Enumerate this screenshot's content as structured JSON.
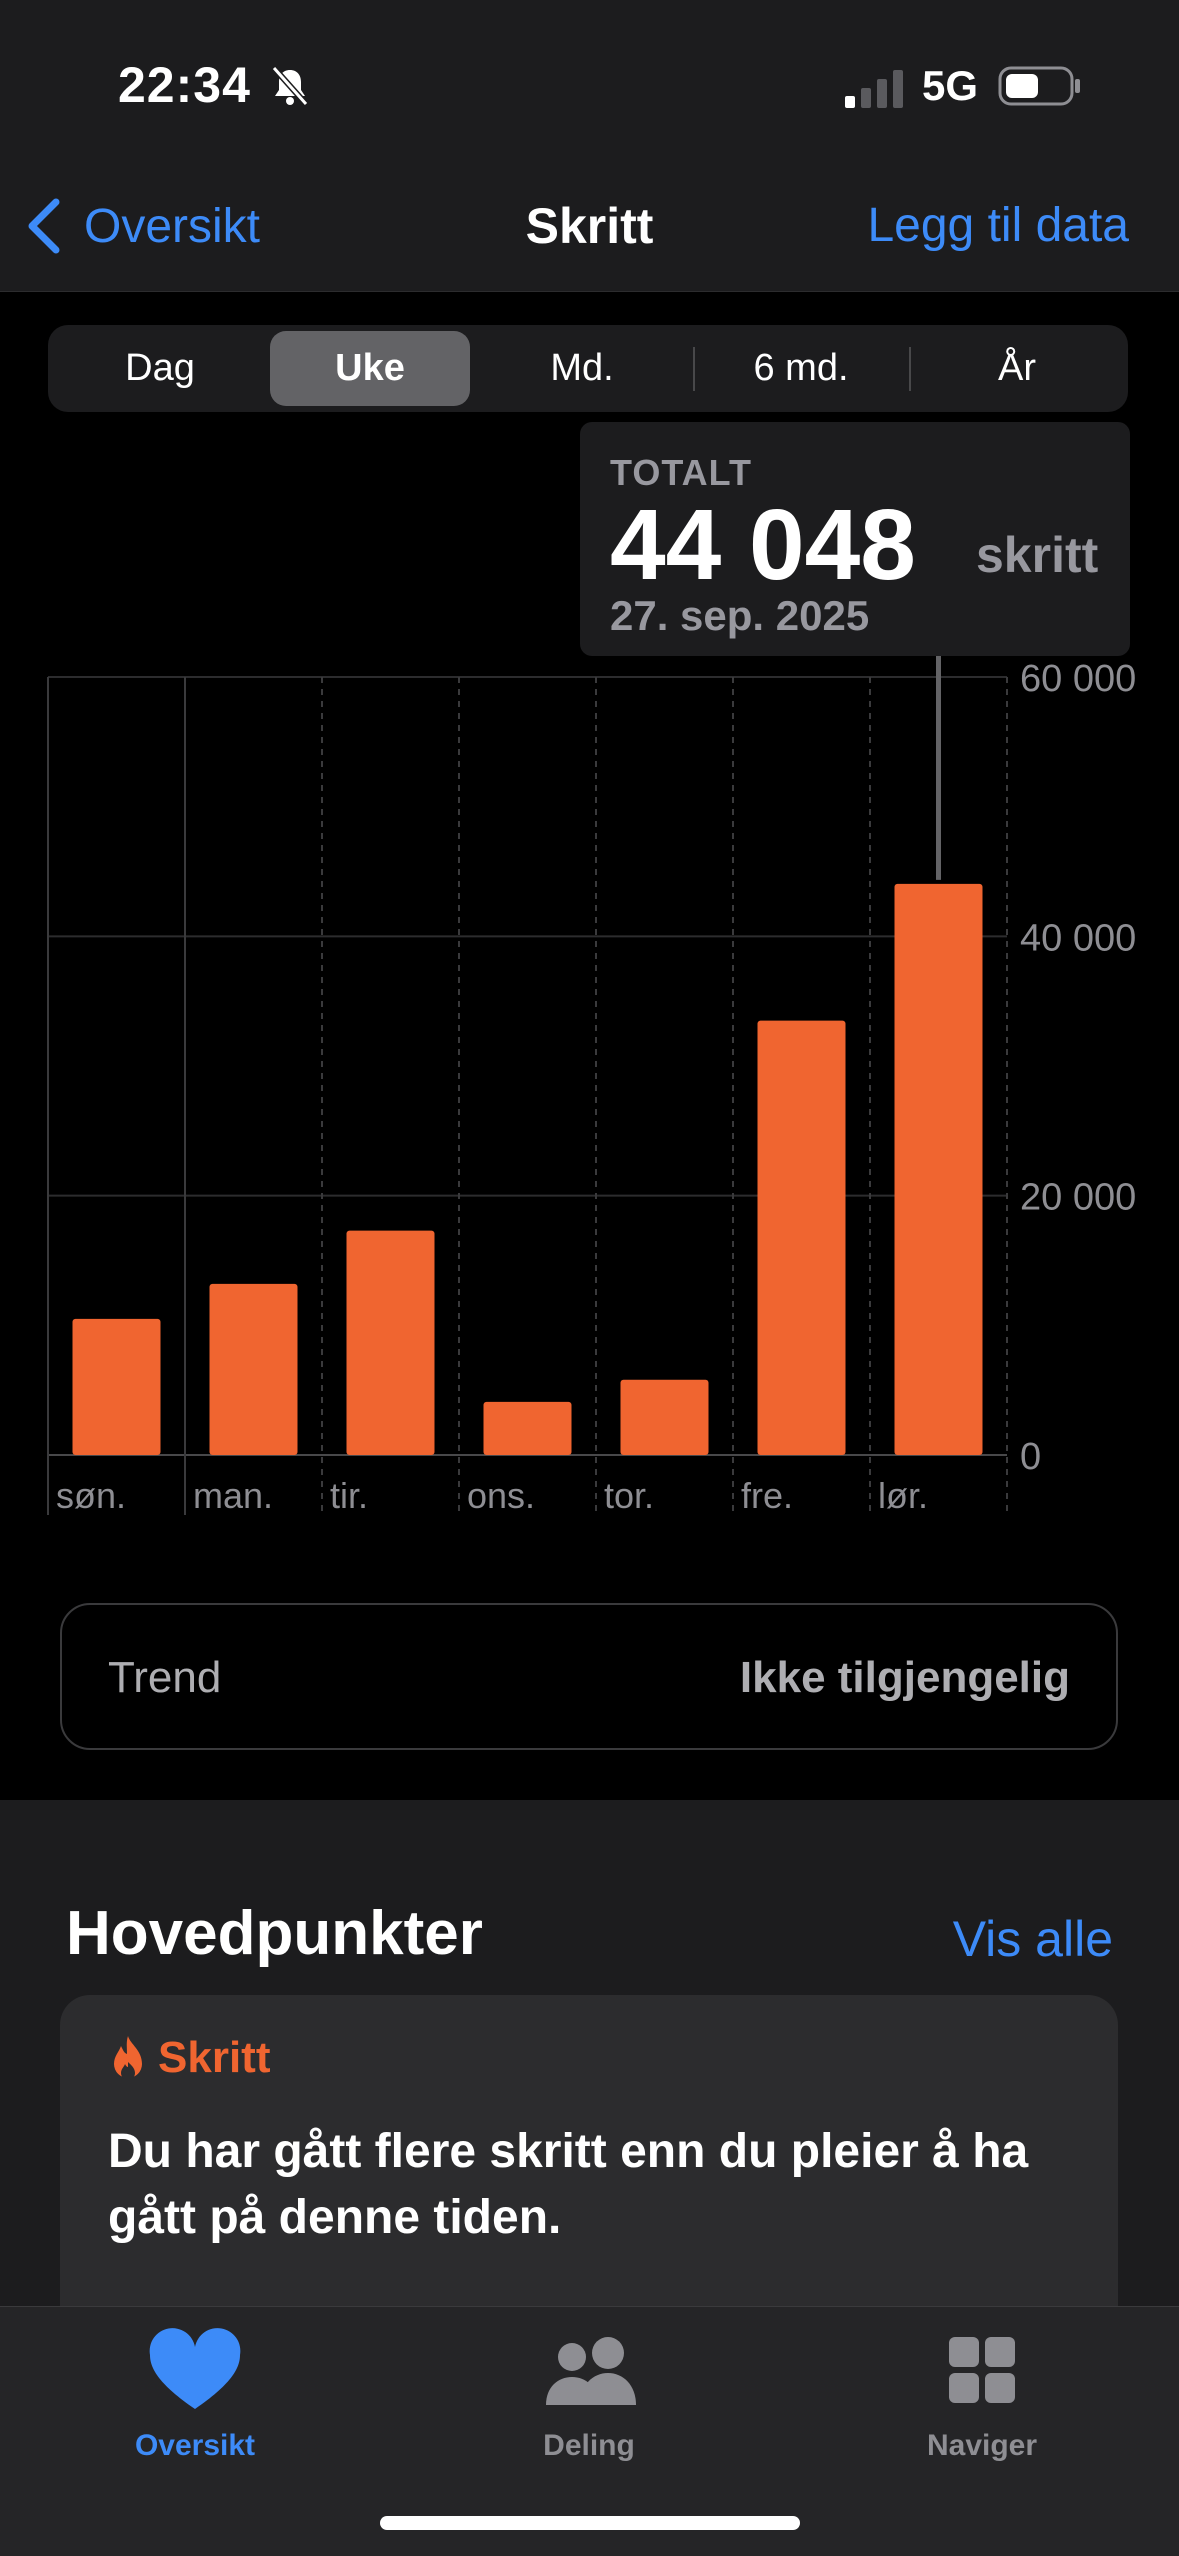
{
  "status": {
    "time": "22:34",
    "network": "5G"
  },
  "nav": {
    "back_label": "Oversikt",
    "title": "Skritt",
    "add_label": "Legg til data"
  },
  "segments": [
    "Dag",
    "Uke",
    "Md.",
    "6 md.",
    "År"
  ],
  "selected_segment": "Uke",
  "tooltip": {
    "label": "TOTALT",
    "value": "44 048",
    "unit": "skritt",
    "date": "27. sep. 2025"
  },
  "chart_data": {
    "type": "bar",
    "categories": [
      "søn.",
      "man.",
      "tir.",
      "ons.",
      "tor.",
      "fre.",
      "lør."
    ],
    "values": [
      10500,
      13200,
      17300,
      4100,
      5800,
      33500,
      44048
    ],
    "y_ticks": [
      "60 000",
      "40 000",
      "20 000",
      "0"
    ],
    "ylim": [
      0,
      60000
    ],
    "bar_color": "#f06530",
    "selected_index": 6
  },
  "trend": {
    "label": "Trend",
    "value": "Ikke tilgjengelig"
  },
  "highlights": {
    "title": "Hovedpunkter",
    "show_all": "Vis alle",
    "card": {
      "category": "Skritt",
      "text": "Du har gått flere skritt enn du pleier å ha gått på denne tiden."
    }
  },
  "tabs": [
    {
      "label": "Oversikt",
      "icon": "heart-icon",
      "active": true
    },
    {
      "label": "Deling",
      "icon": "people-icon",
      "active": false
    },
    {
      "label": "Naviger",
      "icon": "grid-icon",
      "active": false
    }
  ],
  "colors": {
    "accent": "#3d8bf8",
    "steps": "#f06530"
  }
}
